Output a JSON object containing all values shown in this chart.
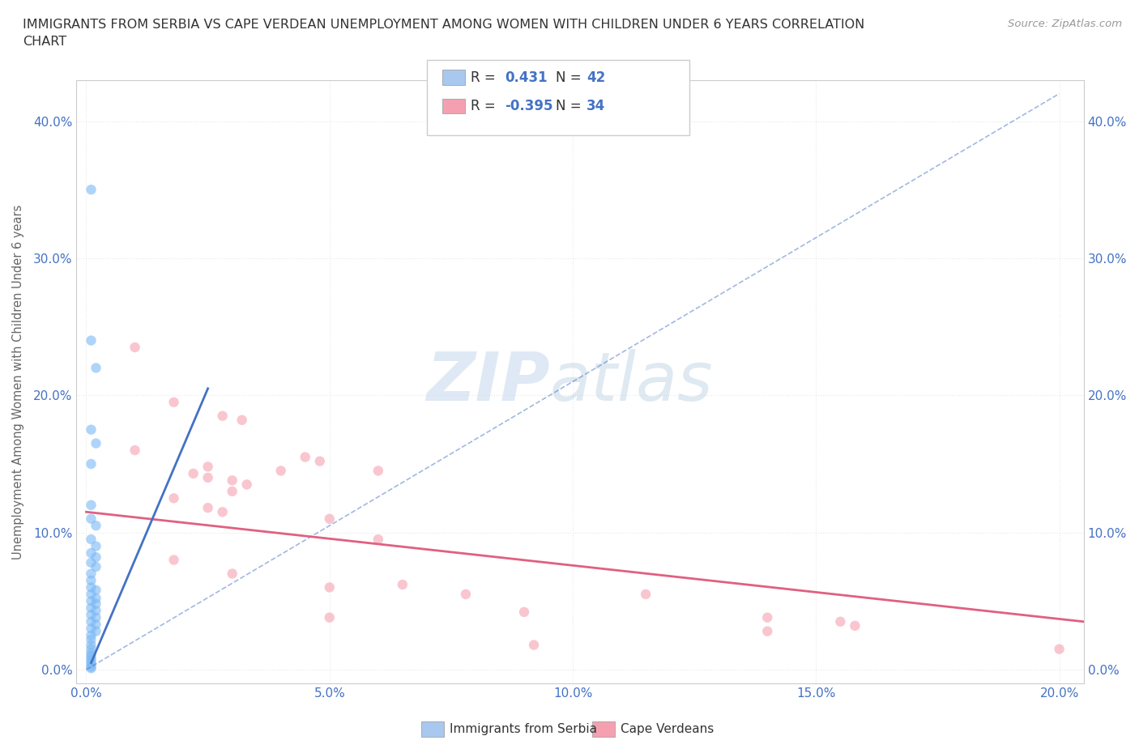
{
  "title": "IMMIGRANTS FROM SERBIA VS CAPE VERDEAN UNEMPLOYMENT AMONG WOMEN WITH CHILDREN UNDER 6 YEARS CORRELATION\nCHART",
  "source": "Source: ZipAtlas.com",
  "ylabel": "Unemployment Among Women with Children Under 6 years",
  "xlabel_ticks": [
    "0.0%",
    "5.0%",
    "10.0%",
    "15.0%",
    "20.0%"
  ],
  "ylabel_ticks": [
    "0.0%",
    "10.0%",
    "20.0%",
    "30.0%",
    "40.0%"
  ],
  "xlim": [
    -0.002,
    0.205
  ],
  "ylim": [
    -0.01,
    0.43
  ],
  "legend_series": [
    {
      "label": "Immigrants from Serbia",
      "color": "#a8c8f0",
      "R": 0.431,
      "N": 42
    },
    {
      "label": "Cape Verdeans",
      "color": "#f5a0b0",
      "R": -0.395,
      "N": 34
    }
  ],
  "blue_scatter": [
    [
      0.001,
      0.35
    ],
    [
      0.001,
      0.24
    ],
    [
      0.002,
      0.22
    ],
    [
      0.001,
      0.175
    ],
    [
      0.002,
      0.165
    ],
    [
      0.001,
      0.15
    ],
    [
      0.001,
      0.12
    ],
    [
      0.001,
      0.11
    ],
    [
      0.002,
      0.105
    ],
    [
      0.001,
      0.095
    ],
    [
      0.002,
      0.09
    ],
    [
      0.001,
      0.085
    ],
    [
      0.002,
      0.082
    ],
    [
      0.001,
      0.078
    ],
    [
      0.002,
      0.075
    ],
    [
      0.001,
      0.07
    ],
    [
      0.001,
      0.065
    ],
    [
      0.001,
      0.06
    ],
    [
      0.002,
      0.058
    ],
    [
      0.001,
      0.055
    ],
    [
      0.002,
      0.052
    ],
    [
      0.001,
      0.05
    ],
    [
      0.002,
      0.048
    ],
    [
      0.001,
      0.045
    ],
    [
      0.002,
      0.043
    ],
    [
      0.001,
      0.04
    ],
    [
      0.002,
      0.038
    ],
    [
      0.001,
      0.035
    ],
    [
      0.002,
      0.033
    ],
    [
      0.001,
      0.03
    ],
    [
      0.002,
      0.028
    ],
    [
      0.001,
      0.025
    ],
    [
      0.001,
      0.022
    ],
    [
      0.001,
      0.018
    ],
    [
      0.001,
      0.015
    ],
    [
      0.001,
      0.012
    ],
    [
      0.001,
      0.01
    ],
    [
      0.001,
      0.008
    ],
    [
      0.001,
      0.006
    ],
    [
      0.001,
      0.004
    ],
    [
      0.001,
      0.002
    ],
    [
      0.001,
      0.001
    ]
  ],
  "pink_scatter": [
    [
      0.01,
      0.235
    ],
    [
      0.018,
      0.195
    ],
    [
      0.028,
      0.185
    ],
    [
      0.032,
      0.182
    ],
    [
      0.01,
      0.16
    ],
    [
      0.025,
      0.148
    ],
    [
      0.022,
      0.143
    ],
    [
      0.025,
      0.14
    ],
    [
      0.03,
      0.138
    ],
    [
      0.033,
      0.135
    ],
    [
      0.03,
      0.13
    ],
    [
      0.045,
      0.155
    ],
    [
      0.048,
      0.152
    ],
    [
      0.04,
      0.145
    ],
    [
      0.06,
      0.145
    ],
    [
      0.018,
      0.125
    ],
    [
      0.025,
      0.118
    ],
    [
      0.028,
      0.115
    ],
    [
      0.05,
      0.11
    ],
    [
      0.06,
      0.095
    ],
    [
      0.018,
      0.08
    ],
    [
      0.03,
      0.07
    ],
    [
      0.065,
      0.062
    ],
    [
      0.05,
      0.06
    ],
    [
      0.078,
      0.055
    ],
    [
      0.115,
      0.055
    ],
    [
      0.09,
      0.042
    ],
    [
      0.05,
      0.038
    ],
    [
      0.14,
      0.038
    ],
    [
      0.155,
      0.035
    ],
    [
      0.158,
      0.032
    ],
    [
      0.14,
      0.028
    ],
    [
      0.092,
      0.018
    ],
    [
      0.2,
      0.015
    ]
  ],
  "blue_solid_line_x": [
    0.001,
    0.025
  ],
  "blue_solid_line_y": [
    0.005,
    0.205
  ],
  "blue_dash_line_x": [
    0.0,
    0.2
  ],
  "blue_dash_line_y": [
    0.0,
    0.42
  ],
  "pink_line_x": [
    0.0,
    0.205
  ],
  "pink_line_y": [
    0.115,
    0.035
  ],
  "scatter_size": 80,
  "scatter_alpha": 0.6,
  "blue_scatter_color": "#7ab8f5",
  "pink_scatter_color": "#f5a0b0",
  "blue_line_color": "#4472c4",
  "pink_line_color": "#e06080",
  "grid_color": "#e8e8e8",
  "tick_color": "#4472c4",
  "title_color": "#333333",
  "axis_label_color": "#666666"
}
